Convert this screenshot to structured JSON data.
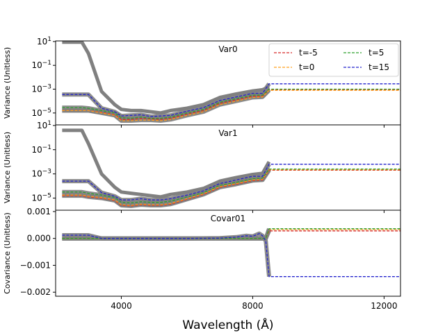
{
  "chart_data": {
    "type": "line",
    "xlabel": "Wavelength (Å)",
    "xlim": [
      2000,
      12500
    ],
    "x_ticks": [
      4000,
      8000,
      12000
    ],
    "x_tick_labels": [
      "4000",
      "8000",
      "12000"
    ],
    "legend": {
      "placement": "top-right (in Var0 panel)",
      "entries": [
        {
          "label": "t=-5",
          "color": "#d62728",
          "style": "dashed"
        },
        {
          "label": "t=5",
          "color": "#2ca02c",
          "style": "dashed"
        },
        {
          "label": "t=0",
          "color": "#ff9f1c",
          "style": "dashed"
        },
        {
          "label": "t=15",
          "color": "#2222cc",
          "style": "dashed"
        }
      ]
    },
    "panels": [
      {
        "title": "Var0",
        "ylabel": "Variance (Unitless)",
        "yscale": "log",
        "ylim_log10": [
          -6.0,
          1.05
        ],
        "y_ticks_log10": [
          1,
          -1,
          -3,
          -5
        ],
        "y_tick_labels": [
          "10",
          "10",
          "10",
          "10"
        ],
        "y_tick_exps": [
          "1",
          "−1",
          "−3",
          "−5"
        ],
        "x": [
          2200,
          2800,
          3000,
          3400,
          3800,
          4000,
          4300,
          4600,
          4900,
          5200,
          5500,
          6000,
          6500,
          7000,
          7500,
          8000,
          8300,
          8500
        ],
        "series": [
          {
            "name": "model (gray)",
            "values_log10": [
              0.95,
              0.95,
              0.0,
              -3.2,
              -4.3,
              -4.7,
              -4.8,
              -4.8,
              -4.9,
              -5.0,
              -4.8,
              -4.6,
              -4.3,
              -3.7,
              -3.4,
              -3.15,
              -3.05,
              -2.8
            ]
          },
          {
            "name": "t=-5",
            "values_log10": [
              -4.8,
              -4.8,
              -4.8,
              -4.95,
              -5.15,
              -5.55,
              -5.55,
              -5.45,
              -5.5,
              -5.55,
              -5.45,
              -5.1,
              -4.8,
              -4.2,
              -3.9,
              -3.6,
              -3.6,
              -3.05
            ],
            "extend_to": -3.05
          },
          {
            "name": "t=0",
            "values_log10": [
              -4.8,
              -4.8,
              -4.8,
              -5.0,
              -5.2,
              -5.65,
              -5.65,
              -5.6,
              -5.6,
              -5.65,
              -5.55,
              -5.2,
              -4.9,
              -4.3,
              -4.0,
              -3.7,
              -3.65,
              -3.1
            ],
            "extend_to": -3.1
          },
          {
            "name": "t=5",
            "values_log10": [
              -4.55,
              -4.55,
              -4.6,
              -4.8,
              -5.0,
              -5.4,
              -5.45,
              -5.35,
              -5.45,
              -5.45,
              -5.35,
              -5.0,
              -4.7,
              -4.1,
              -3.8,
              -3.5,
              -3.5,
              -3.0
            ],
            "extend_to": -3.0
          },
          {
            "name": "t=15",
            "values_log10": [
              -3.45,
              -3.45,
              -3.45,
              -4.6,
              -4.9,
              -5.25,
              -5.2,
              -5.15,
              -5.3,
              -5.25,
              -5.2,
              -4.85,
              -4.55,
              -3.95,
              -3.65,
              -3.35,
              -3.35,
              -2.55
            ],
            "extend_to": -2.55
          }
        ]
      },
      {
        "title": "Var1",
        "ylabel": "Variance (Unitless)",
        "yscale": "log",
        "ylim_log10": [
          -6.0,
          1.05
        ],
        "y_ticks_log10": [
          1,
          -1,
          -3,
          -5
        ],
        "y_tick_labels": [
          "10",
          "10",
          "10",
          "10"
        ],
        "y_tick_exps": [
          "1",
          "−1",
          "−3",
          "−5"
        ],
        "x": [
          2200,
          2800,
          3000,
          3400,
          3800,
          4000,
          4300,
          4600,
          4900,
          5200,
          5500,
          6000,
          6500,
          7000,
          7500,
          8000,
          8300,
          8500
        ],
        "series": [
          {
            "name": "model (gray)",
            "values_log10": [
              0.6,
              0.6,
              -0.5,
              -3.0,
              -4.1,
              -4.5,
              -4.6,
              -4.7,
              -4.8,
              -4.9,
              -4.7,
              -4.5,
              -4.2,
              -3.6,
              -3.3,
              -3.05,
              -2.95,
              -2.0
            ]
          },
          {
            "name": "t=-5",
            "values_log10": [
              -4.8,
              -4.8,
              -4.9,
              -5.0,
              -5.2,
              -5.6,
              -5.65,
              -5.55,
              -5.6,
              -5.6,
              -5.5,
              -5.1,
              -4.7,
              -4.1,
              -3.85,
              -3.55,
              -3.5,
              -2.7
            ],
            "extend_to": -2.7
          },
          {
            "name": "t=0",
            "values_log10": [
              -4.75,
              -4.75,
              -4.85,
              -4.95,
              -5.15,
              -5.55,
              -5.6,
              -5.5,
              -5.55,
              -5.55,
              -5.45,
              -5.05,
              -4.65,
              -4.05,
              -3.8,
              -3.5,
              -3.45,
              -2.65
            ],
            "extend_to": -2.65
          },
          {
            "name": "t=5",
            "values_log10": [
              -4.5,
              -4.5,
              -4.6,
              -4.75,
              -4.95,
              -5.35,
              -5.4,
              -5.3,
              -5.35,
              -5.35,
              -5.25,
              -4.9,
              -4.55,
              -3.95,
              -3.7,
              -3.4,
              -3.35,
              -2.6
            ],
            "extend_to": -2.6
          },
          {
            "name": "t=15",
            "values_log10": [
              -3.6,
              -3.6,
              -3.6,
              -4.55,
              -4.85,
              -5.15,
              -5.15,
              -5.05,
              -5.15,
              -5.15,
              -5.05,
              -4.75,
              -4.4,
              -3.8,
              -3.5,
              -3.2,
              -3.2,
              -2.2
            ],
            "extend_to": -2.2
          }
        ]
      },
      {
        "title": "Covar01",
        "ylabel": "Covariance (Unitless)",
        "yscale": "linear",
        "ylim": [
          -0.00215,
          0.00105
        ],
        "y_ticks": [
          0.001,
          0.0,
          -0.001,
          -0.002
        ],
        "y_tick_labels": [
          "0.001",
          "0.000",
          "−0.001",
          "−0.002"
        ],
        "x": [
          2200,
          2800,
          3000,
          3400,
          3800,
          4000,
          5000,
          6000,
          7000,
          7500,
          7800,
          8000,
          8200,
          8300,
          8400,
          8500
        ],
        "series": [
          {
            "name": "t=-5",
            "values": [
              0.0,
              0.0,
              0.0,
              0.0,
              0.0,
              0.0,
              0.0,
              0.0,
              0.0,
              0.0,
              0.0,
              0.0,
              0.0,
              0.0,
              0.0,
              0.00028
            ],
            "extend_to": 0.00028
          },
          {
            "name": "t=0",
            "values": [
              0.0,
              0.0,
              0.0,
              0.0,
              0.0,
              0.0,
              0.0,
              0.0,
              0.0,
              0.0,
              0.0,
              0.0,
              0.0,
              0.0,
              0.0,
              0.00033
            ],
            "extend_to": 0.00033
          },
          {
            "name": "t=5",
            "values": [
              0.0,
              0.0,
              0.0,
              0.0,
              0.0,
              0.0,
              0.0,
              0.0,
              0.0,
              0.0,
              0.0,
              0.0,
              0.0,
              0.0,
              0.0,
              0.00036
            ],
            "extend_to": 0.00036
          },
          {
            "name": "t=15",
            "values": [
              0.00012,
              0.00012,
              0.00012,
              0.0,
              0.0,
              0.0,
              0.0,
              0.0,
              1e-05,
              5e-05,
              0.0001,
              8e-05,
              0.00018,
              0.0001,
              -0.0001,
              -0.00142
            ],
            "extend_to": -0.00142
          }
        ]
      }
    ]
  }
}
